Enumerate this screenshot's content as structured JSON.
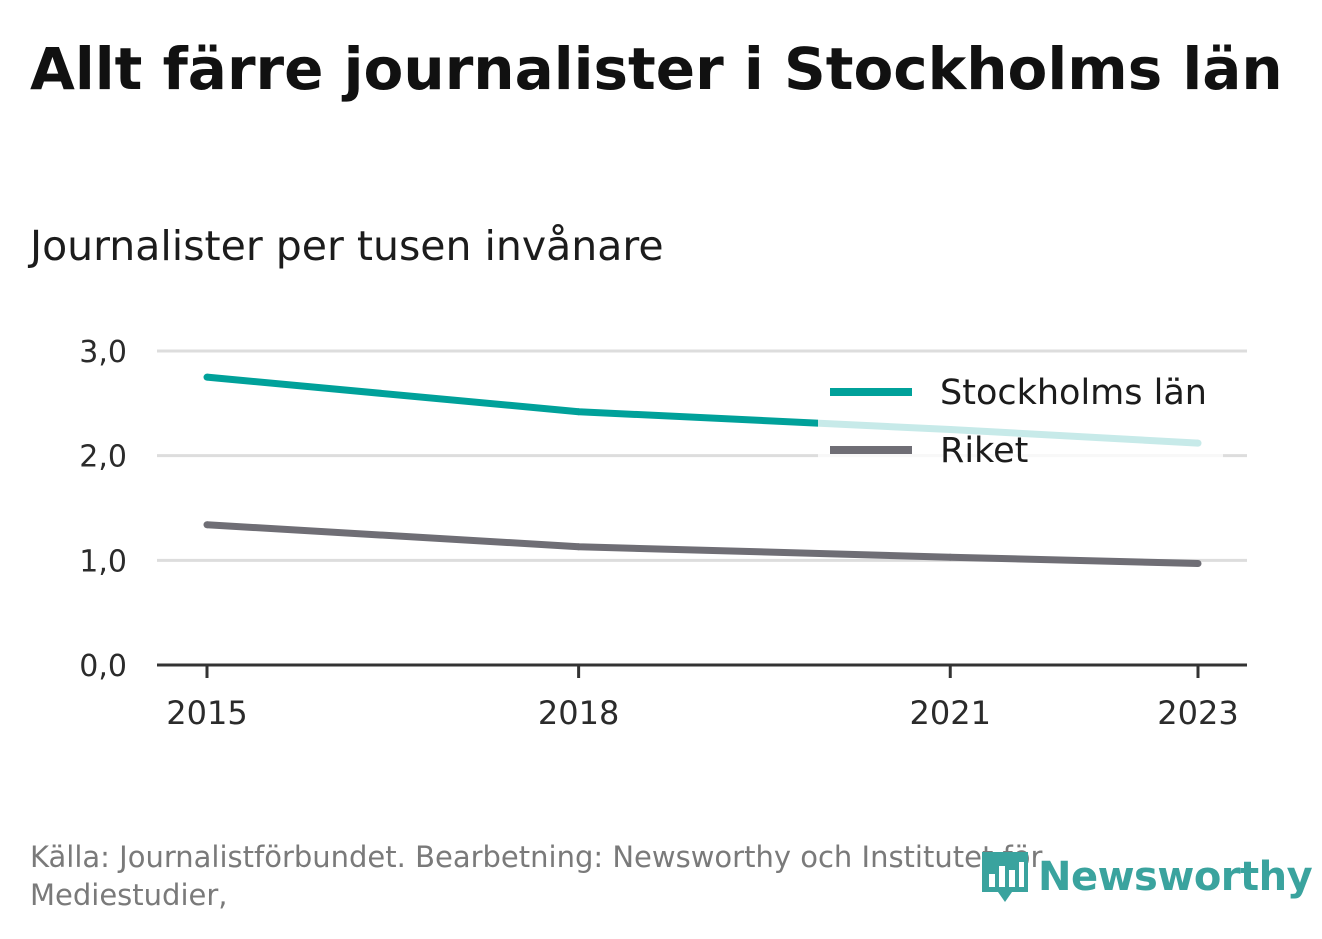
{
  "title": "Allt färre journalister i Stockholms län",
  "subtitle": "Journalister per tusen invånare",
  "source": "Källa: Journalistförbundet. Bearbetning: Newsworthy och Institutet för Mediestudier,",
  "logo_text": "Newsworthy",
  "chart_data": {
    "type": "line",
    "x": [
      2015,
      2018,
      2021,
      2023
    ],
    "x_tick_labels": [
      "2015",
      "2018",
      "2021",
      "2023"
    ],
    "ylim": [
      0,
      3
    ],
    "y_ticks": [
      0,
      1,
      2,
      3
    ],
    "y_tick_labels": [
      "0,0",
      "1,0",
      "2,0",
      "3,0"
    ],
    "grid": true,
    "legend_position": "top-right",
    "series": [
      {
        "name": "Stockholms län",
        "color": "#00a19a",
        "values": [
          2.75,
          2.42,
          2.25,
          2.12
        ]
      },
      {
        "name": "Riket",
        "color": "#6f6e75",
        "values": [
          1.34,
          1.13,
          1.03,
          0.97
        ]
      }
    ]
  }
}
